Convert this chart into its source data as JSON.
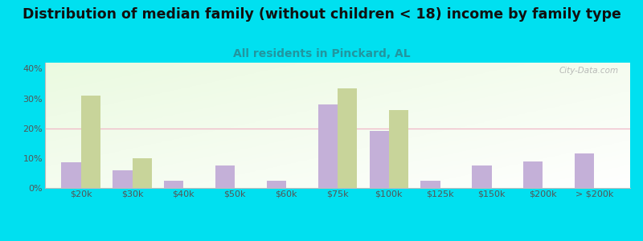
{
  "title": "Distribution of median family (without children < 18) income by family type",
  "subtitle": "All residents in Pinckard, AL",
  "categories": [
    "$20k",
    "$30k",
    "$40k",
    "$50k",
    "$60k",
    "$75k",
    "$100k",
    "$125k",
    "$150k",
    "$200k",
    "> $200k"
  ],
  "married_couple": [
    8.5,
    6.0,
    2.5,
    7.5,
    2.5,
    28.0,
    19.0,
    2.5,
    7.5,
    9.0,
    11.5
  ],
  "female_no_husband": [
    31.0,
    10.0,
    0,
    0,
    0,
    33.5,
    26.0,
    0,
    0,
    0,
    0
  ],
  "married_color": "#c4b0d8",
  "female_color": "#c8d49a",
  "background_outer": "#00e0f0",
  "title_fontsize": 12.5,
  "subtitle_fontsize": 10,
  "subtitle_color": "#2196a0",
  "ylim": [
    0,
    42
  ],
  "yticks": [
    0,
    10,
    20,
    30,
    40
  ],
  "ytick_labels": [
    "0%",
    "10%",
    "20%",
    "30%",
    "40%"
  ],
  "bar_width": 0.38,
  "gridline_color": "#f0b8c8",
  "watermark": "City-Data.com"
}
